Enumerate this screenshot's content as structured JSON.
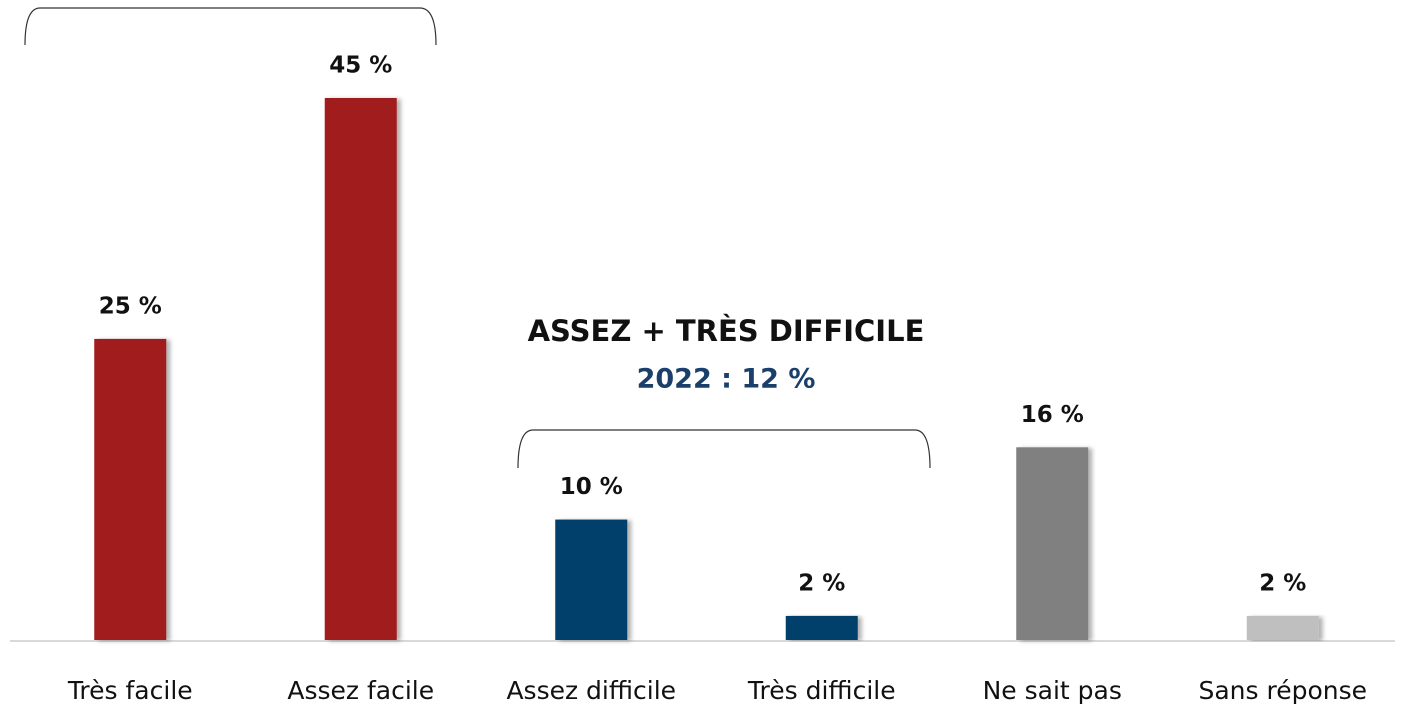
{
  "chart_data": {
    "type": "bar",
    "annotations": [
      "ASSEZ + TRÈS DIFFICILE",
      "2022 : 12 %"
    ],
    "categories": [
      "Très facile",
      "Assez facile",
      "Assez difficile",
      "Très difficile",
      "Ne sait pas",
      "Sans réponse"
    ],
    "values": [
      25,
      45,
      10,
      2,
      16,
      2
    ],
    "value_labels": [
      "25 %",
      "45 %",
      "10 %",
      "2 %",
      "16 %",
      "2 %"
    ],
    "colors": [
      "#a11c1c",
      "#a11c1c",
      "#003f6b",
      "#003f6b",
      "#808080",
      "#bfbfbf"
    ]
  }
}
